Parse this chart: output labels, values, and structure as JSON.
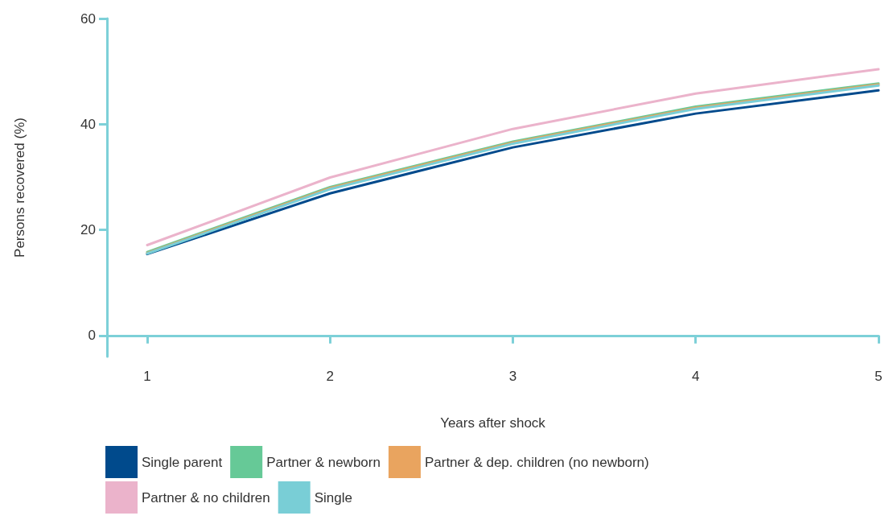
{
  "chart_data": {
    "type": "line",
    "xlabel": "Years after shock",
    "ylabel": "Persons recovered (%)",
    "x": [
      1,
      2,
      3,
      4,
      5
    ],
    "xlim": [
      0.78,
      5
    ],
    "xticks": [
      1,
      2,
      3,
      4,
      5
    ],
    "ylim": [
      -4,
      60
    ],
    "yticks": [
      0,
      20,
      40,
      60
    ],
    "grid": false,
    "legend": "bottom",
    "marker": "none",
    "line_style": "solid",
    "series": [
      {
        "name": "Single parent",
        "color": "#004a8c",
        "values": [
          15.4,
          26.9,
          35.6,
          42.0,
          46.4
        ]
      },
      {
        "name": "Partner & newborn",
        "color": "#66c997",
        "values": [
          15.8,
          28.1,
          36.7,
          43.3,
          47.7
        ]
      },
      {
        "name": "Partner & dep. children (no newborn)",
        "color": "#e9a45f",
        "values": [
          15.6,
          27.9,
          36.5,
          43.1,
          47.5
        ]
      },
      {
        "name": "Partner & no children",
        "color": "#ebb3cb",
        "values": [
          17.1,
          29.9,
          39.1,
          45.8,
          50.4
        ]
      },
      {
        "name": "Single",
        "color": "#79ced6",
        "values": [
          15.5,
          27.7,
          36.3,
          42.9,
          47.3
        ]
      }
    ]
  }
}
